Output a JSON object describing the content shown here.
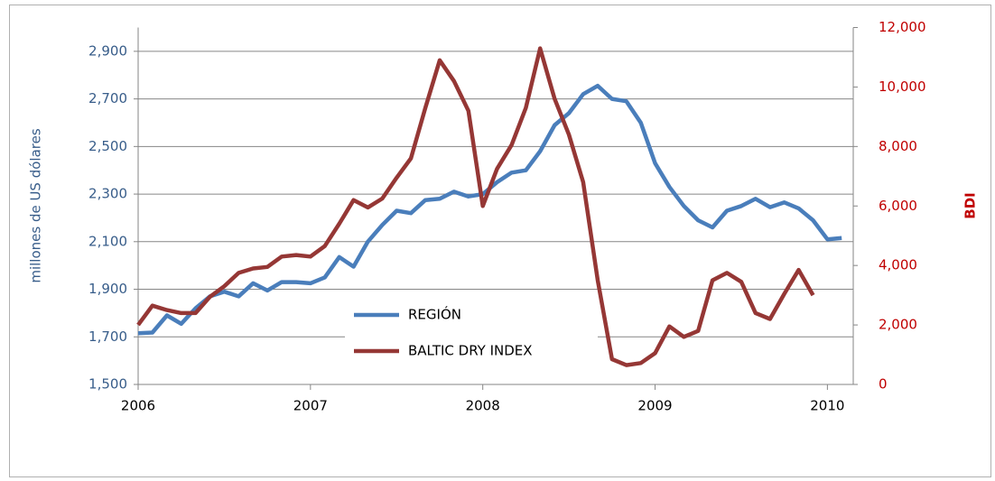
{
  "chart_data": {
    "type": "line",
    "y_label": "millones de US dólares",
    "y2_label": "BDI",
    "xlim": [
      2006,
      2010.15
    ],
    "xticks": [
      2006,
      2007,
      2008,
      2009,
      2010
    ],
    "ylim": [
      1500,
      3000
    ],
    "yticks": [
      {
        "value": 1500,
        "label": "1,500"
      },
      {
        "value": 1700,
        "label": "1,700"
      },
      {
        "value": 1900,
        "label": "1,900"
      },
      {
        "value": 2100,
        "label": "2,100"
      },
      {
        "value": 2300,
        "label": "2,300"
      },
      {
        "value": 2500,
        "label": "2,500"
      },
      {
        "value": 2700,
        "label": "2,700"
      },
      {
        "value": 2900,
        "label": "2,900"
      }
    ],
    "y2lim": [
      0,
      12000
    ],
    "y2ticks": [
      0,
      {
        "value": 2000,
        "label": "2,000"
      },
      {
        "value": 4000,
        "label": "4,000"
      },
      {
        "value": 6000,
        "label": "6,000"
      },
      {
        "value": 8000,
        "label": "8,000"
      },
      {
        "value": 10000,
        "label": "10,000"
      },
      {
        "value": 12000,
        "label": "12,000"
      }
    ],
    "grid": true,
    "legend": "bottom-center",
    "series": [
      {
        "name": "REGIÓN",
        "color": "#4a7ebb",
        "x": [
          2006,
          2006.083,
          2006.167,
          2006.25,
          2006.333,
          2006.417,
          2006.5,
          2006.583,
          2006.667,
          2006.75,
          2006.833,
          2006.917,
          2007,
          2007.083,
          2007.167,
          2007.25,
          2007.333,
          2007.417,
          2007.5,
          2007.583,
          2007.667,
          2007.75,
          2007.833,
          2007.917,
          2008,
          2008.083,
          2008.167,
          2008.25,
          2008.333,
          2008.417,
          2008.5,
          2008.583,
          2008.667,
          2008.75,
          2008.833,
          2008.917,
          2009,
          2009.083,
          2009.167,
          2009.25,
          2009.333,
          2009.417,
          2009.5,
          2009.583,
          2009.667,
          2009.75,
          2009.833,
          2009.917,
          2010,
          2010.083
        ],
        "values": [
          1715,
          1718,
          1790,
          1755,
          1820,
          1870,
          1890,
          1870,
          1925,
          1895,
          1930,
          1930,
          1925,
          1950,
          2035,
          1995,
          2100,
          2170,
          2230,
          2220,
          2275,
          2280,
          2310,
          2290,
          2300,
          2350,
          2390,
          2400,
          2480,
          2590,
          2640,
          2720,
          2755,
          2700,
          2690,
          2600,
          2430,
          2330,
          2250,
          2190,
          2160,
          2230,
          2250,
          2280,
          2245,
          2265,
          2240,
          2190,
          2110,
          2115
        ]
      },
      {
        "name": "BALTIC DRY INDEX",
        "color": "#953735",
        "axis": "y2",
        "x": [
          2006,
          2006.083,
          2006.167,
          2006.25,
          2006.333,
          2006.417,
          2006.5,
          2006.583,
          2006.667,
          2006.75,
          2006.833,
          2006.917,
          2007,
          2007.083,
          2007.167,
          2007.25,
          2007.333,
          2007.417,
          2007.5,
          2007.583,
          2007.667,
          2007.75,
          2007.833,
          2007.917,
          2008,
          2008.083,
          2008.167,
          2008.25,
          2008.333,
          2008.417,
          2008.5,
          2008.583,
          2008.667,
          2008.75,
          2008.833,
          2008.917,
          2009,
          2009.083,
          2009.167,
          2009.25,
          2009.333,
          2009.417,
          2009.5,
          2009.583,
          2009.667,
          2009.75,
          2009.833,
          2009.917
        ],
        "values": [
          2000,
          2650,
          2500,
          2400,
          2400,
          2950,
          3300,
          3750,
          3900,
          3950,
          4300,
          4350,
          4300,
          4650,
          5400,
          6200,
          5950,
          6250,
          6950,
          7600,
          9300,
          10900,
          10200,
          9200,
          6000,
          7250,
          8050,
          9300,
          11300,
          9600,
          8400,
          6800,
          3500,
          850,
          650,
          720,
          1050,
          1950,
          1600,
          1800,
          3500,
          3750,
          3450,
          2400,
          2200,
          3050,
          3850,
          3000
        ]
      }
    ]
  }
}
